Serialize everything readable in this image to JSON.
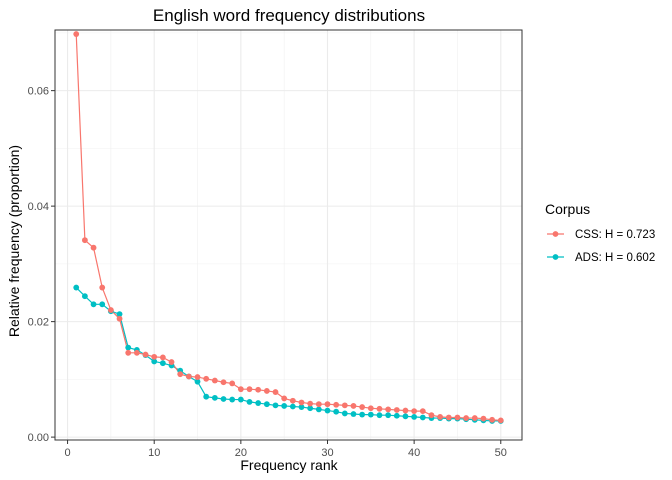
{
  "chart_data": {
    "type": "line",
    "title": "English word frequency distributions",
    "xlabel": "Frequency rank",
    "ylabel": "Relative frequency (proportion)",
    "xlim": [
      -1.45,
      52.45
    ],
    "ylim": [
      -0.0005,
      0.0705
    ],
    "x_ticks": [
      0,
      10,
      20,
      30,
      40,
      50
    ],
    "x_tick_labels": [
      "0",
      "10",
      "20",
      "30",
      "40",
      "50"
    ],
    "y_ticks": [
      0.0,
      0.02,
      0.04,
      0.06
    ],
    "y_tick_labels": [
      "0.00",
      "0.02",
      "0.04",
      "0.06"
    ],
    "x_minor_ticks": [
      5,
      15,
      25,
      35,
      45
    ],
    "y_minor_ticks": [
      0.01,
      0.03,
      0.05,
      0.07
    ],
    "grid": true,
    "legend": {
      "title": "Corpus",
      "position": "right"
    },
    "x": [
      1,
      2,
      3,
      4,
      5,
      6,
      7,
      8,
      9,
      10,
      11,
      12,
      13,
      14,
      15,
      16,
      17,
      18,
      19,
      20,
      21,
      22,
      23,
      24,
      25,
      26,
      27,
      28,
      29,
      30,
      31,
      32,
      33,
      34,
      35,
      36,
      37,
      38,
      39,
      40,
      41,
      42,
      43,
      44,
      45,
      46,
      47,
      48,
      49,
      50
    ],
    "series": [
      {
        "name": "CSS: H = 0.723",
        "color": "#F8766D",
        "values": [
          0.0698,
          0.0341,
          0.0328,
          0.0259,
          0.022,
          0.0205,
          0.0146,
          0.0146,
          0.0143,
          0.0139,
          0.0138,
          0.013,
          0.0109,
          0.0105,
          0.0104,
          0.0101,
          0.0098,
          0.0095,
          0.0093,
          0.0083,
          0.0083,
          0.0082,
          0.008,
          0.0078,
          0.0067,
          0.0063,
          0.006,
          0.0058,
          0.0057,
          0.0057,
          0.0056,
          0.0055,
          0.0054,
          0.0052,
          0.005,
          0.0049,
          0.0048,
          0.0047,
          0.0046,
          0.0045,
          0.0045,
          0.0038,
          0.0035,
          0.0034,
          0.0034,
          0.0033,
          0.0033,
          0.0032,
          0.003,
          0.0029
        ]
      },
      {
        "name": "ADS: H = 0.602",
        "color": "#00BFC4",
        "values": [
          0.0259,
          0.0244,
          0.023,
          0.023,
          0.0218,
          0.0213,
          0.0155,
          0.0151,
          0.0142,
          0.0131,
          0.0128,
          0.0124,
          0.0115,
          0.0105,
          0.0096,
          0.007,
          0.0068,
          0.0066,
          0.0065,
          0.0065,
          0.0061,
          0.0059,
          0.0057,
          0.0055,
          0.0054,
          0.0053,
          0.0052,
          0.005,
          0.0048,
          0.0046,
          0.0044,
          0.0041,
          0.004,
          0.0039,
          0.0039,
          0.0038,
          0.0038,
          0.0037,
          0.0036,
          0.0035,
          0.0034,
          0.0033,
          0.0033,
          0.0032,
          0.0032,
          0.0031,
          0.003,
          0.0029,
          0.0028,
          0.0028
        ]
      }
    ]
  }
}
